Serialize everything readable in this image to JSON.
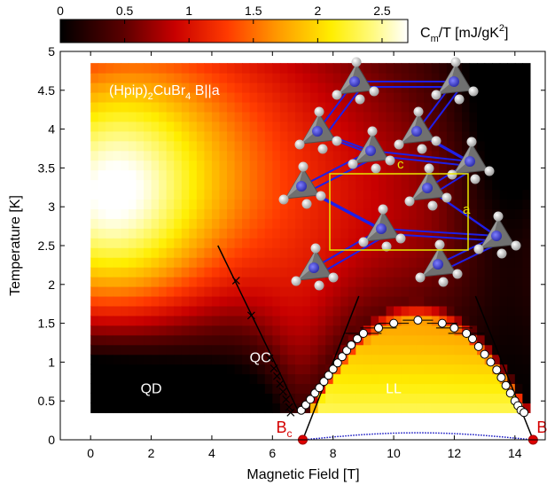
{
  "chart_data": {
    "type": "heatmap",
    "title": "(Hpip)2CuBr4 B||a",
    "xlabel": "Magnetic Field [T]",
    "ylabel": "Temperature [K]",
    "xlim": [
      -1,
      15
    ],
    "ylim": [
      0,
      5
    ],
    "xticks": [
      "0",
      "2",
      "4",
      "6",
      "8",
      "10",
      "12",
      "14"
    ],
    "yticks": [
      "0",
      "0.5",
      "1",
      "1.5",
      "2",
      "2.5",
      "3",
      "3.5",
      "4",
      "4.5",
      "5"
    ],
    "colorbar": {
      "label_main": "C",
      "label_sub": "m",
      "label_rest": "/T [mJ/gK",
      "label_sup": "2",
      "label_end": "]",
      "ticks": [
        "0",
        "0.5",
        "1",
        "1.5",
        "2",
        "2.5"
      ],
      "range": [
        0,
        2.7
      ],
      "colormap": "hot"
    },
    "regions": [
      {
        "label": "QD",
        "x": 2.0,
        "y": 0.6
      },
      {
        "label": "QC",
        "x": 5.6,
        "y": 1.0
      },
      {
        "label": "LL",
        "x": 10.0,
        "y": 0.6
      }
    ],
    "critical_fields": [
      {
        "name": "B",
        "sub": "c",
        "x": 7.0,
        "y": 0.0
      },
      {
        "name": "B",
        "sub": "s",
        "x": 14.6,
        "y": 0.0
      }
    ],
    "series": [
      {
        "marker": "circle-open",
        "x": [
          6.95,
          7.1,
          7.25,
          7.4,
          7.55,
          7.7,
          7.85,
          8.0,
          8.15,
          8.3,
          8.45,
          8.6,
          8.8,
          9.0,
          9.5,
          10.0,
          10.8,
          11.6,
          12.0,
          12.4,
          12.6,
          12.8,
          13.0,
          13.2,
          13.4,
          13.55,
          13.7,
          13.85,
          14.0,
          14.1,
          14.2,
          14.3
        ],
        "y": [
          0.38,
          0.45,
          0.52,
          0.6,
          0.67,
          0.75,
          0.83,
          0.91,
          0.99,
          1.07,
          1.15,
          1.22,
          1.3,
          1.37,
          1.44,
          1.5,
          1.54,
          1.5,
          1.44,
          1.37,
          1.3,
          1.2,
          1.1,
          1.0,
          0.9,
          0.8,
          0.7,
          0.6,
          0.5,
          0.44,
          0.38,
          0.35
        ]
      },
      {
        "marker": "cross",
        "x": [
          4.8,
          5.3,
          5.9,
          6.05,
          6.15,
          6.25,
          6.35,
          6.45,
          6.55,
          6.6
        ],
        "y": [
          2.05,
          1.6,
          1.05,
          0.92,
          0.82,
          0.72,
          0.62,
          0.52,
          0.42,
          0.35
        ]
      }
    ],
    "lines": [
      {
        "x": [
          4.2,
          6.85
        ],
        "y": [
          2.5,
          0.37
        ]
      },
      {
        "x": [
          7.0,
          8.85
        ],
        "y": [
          0.0,
          1.85
        ]
      },
      {
        "x": [
          12.7,
          14.6
        ],
        "y": [
          1.85,
          0.0
        ]
      }
    ],
    "crystal_inset": {
      "labels": [
        "c",
        "a"
      ]
    }
  },
  "colors": {
    "critical_point": "#e00000",
    "line": "#000000",
    "dotted_curve": "#1010c0",
    "crystal_bond": "#1f1fe8",
    "cell_box": "#e8e800"
  }
}
